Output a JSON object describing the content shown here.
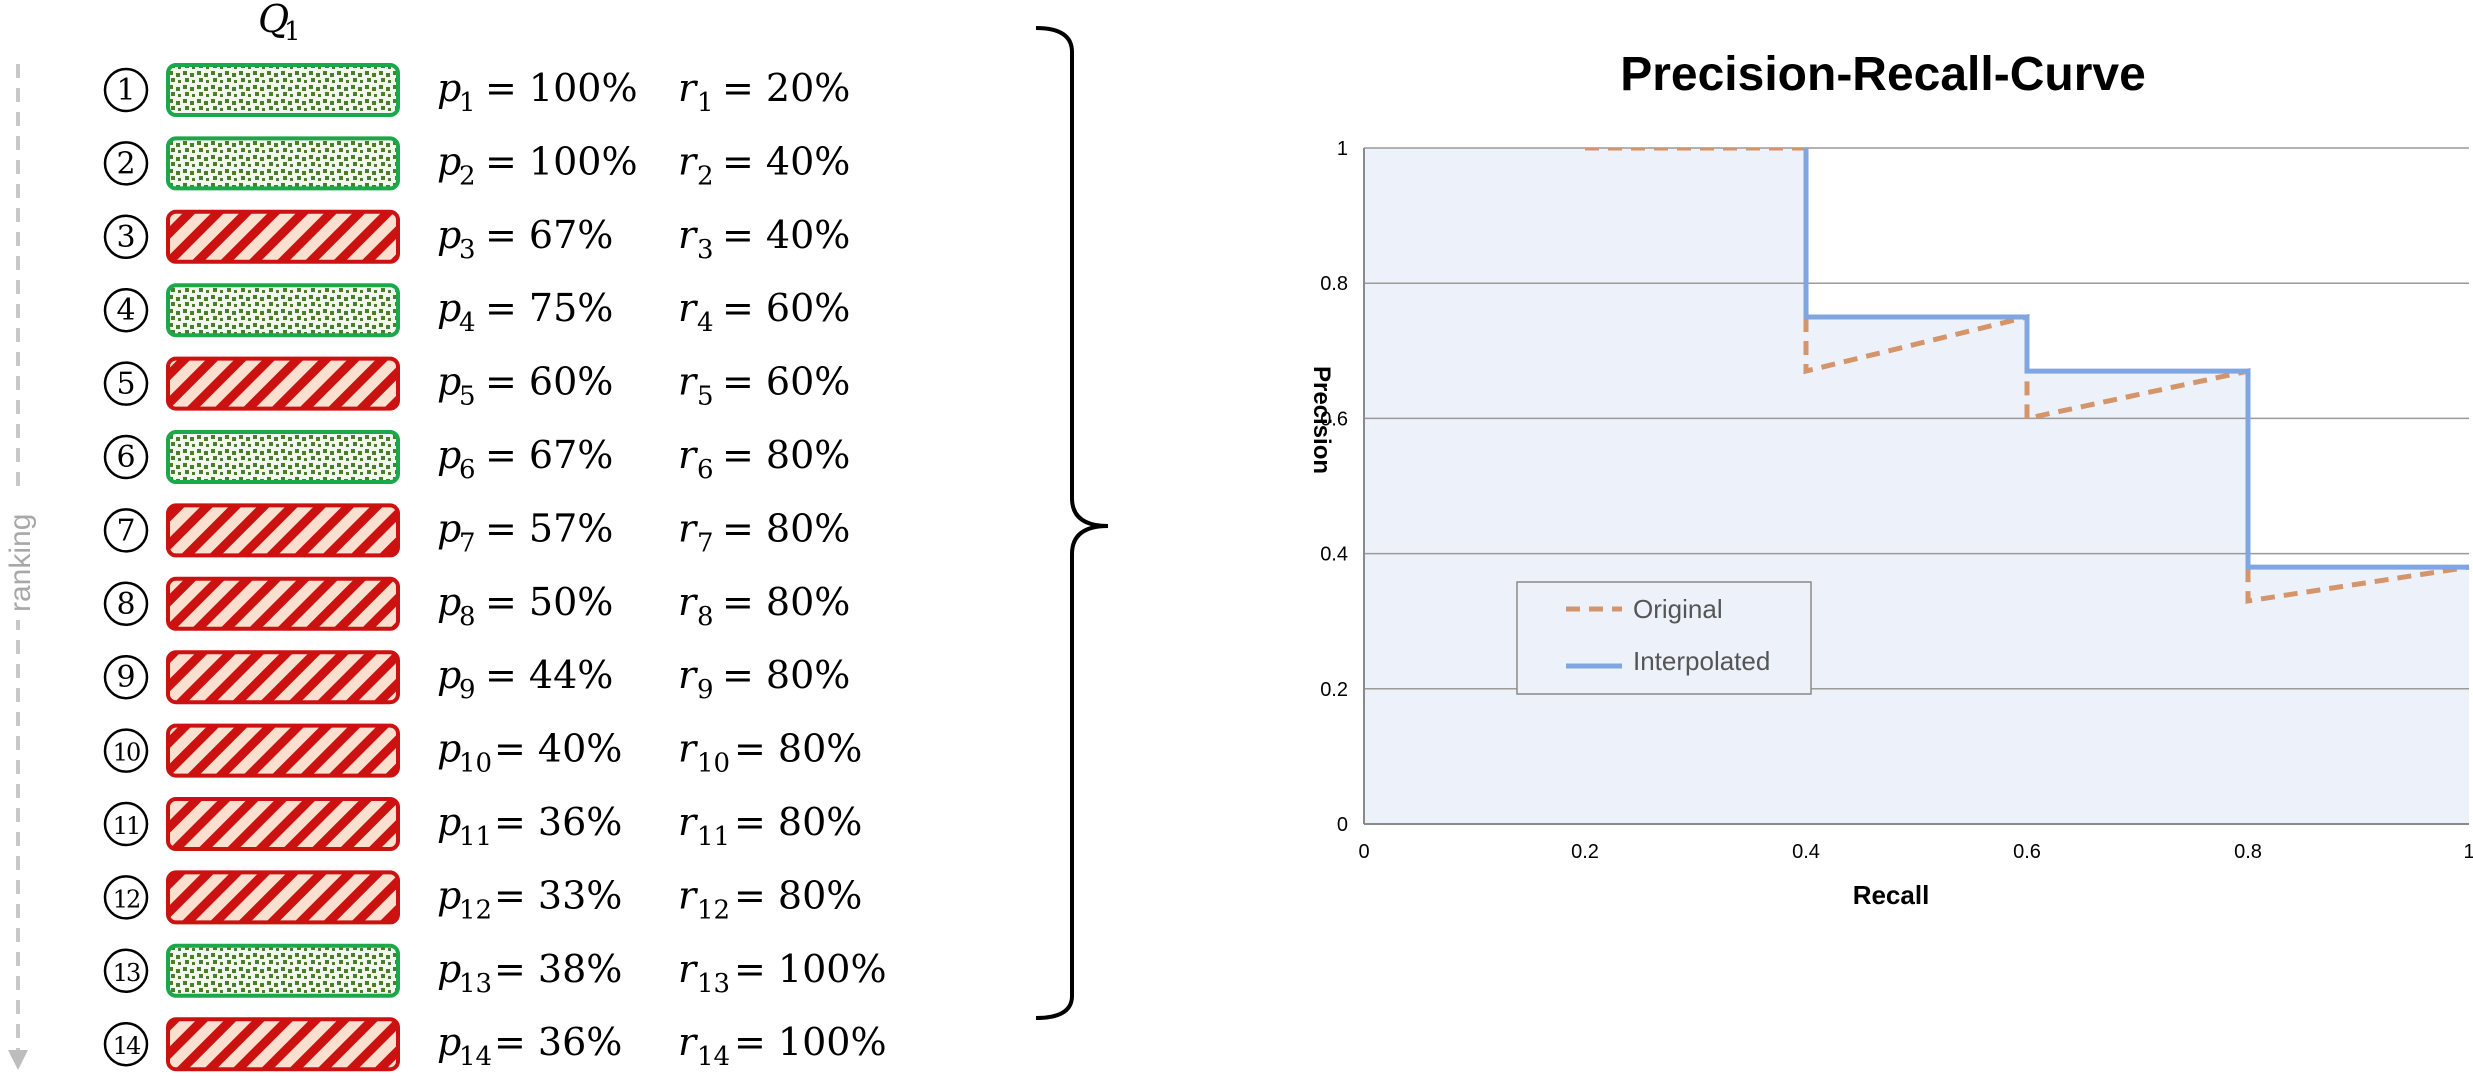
{
  "left_panel": {
    "query_label": "Q",
    "query_sub": "1",
    "ranking_label": "ranking",
    "colors": {
      "relevant": "#1aa84b",
      "irrelevant": "#cc1111"
    },
    "rows": [
      {
        "rank": "1",
        "relevant": true,
        "p_label": "p",
        "p_sub": "1",
        "p_value": "= 100%",
        "r_label": "r",
        "r_sub": "1",
        "r_value": "= 20%"
      },
      {
        "rank": "2",
        "relevant": true,
        "p_label": "p",
        "p_sub": "2",
        "p_value": "= 100%",
        "r_label": "r",
        "r_sub": "2",
        "r_value": "= 40%"
      },
      {
        "rank": "3",
        "relevant": false,
        "p_label": "p",
        "p_sub": "3",
        "p_value": "= 67%",
        "r_label": "r",
        "r_sub": "3",
        "r_value": "= 40%"
      },
      {
        "rank": "4",
        "relevant": true,
        "p_label": "p",
        "p_sub": "4",
        "p_value": "= 75%",
        "r_label": "r",
        "r_sub": "4",
        "r_value": "= 60%"
      },
      {
        "rank": "5",
        "relevant": false,
        "p_label": "p",
        "p_sub": "5",
        "p_value": "= 60%",
        "r_label": "r",
        "r_sub": "5",
        "r_value": "= 60%"
      },
      {
        "rank": "6",
        "relevant": true,
        "p_label": "p",
        "p_sub": "6",
        "p_value": "= 67%",
        "r_label": "r",
        "r_sub": "6",
        "r_value": "= 80%"
      },
      {
        "rank": "7",
        "relevant": false,
        "p_label": "p",
        "p_sub": "7",
        "p_value": "= 57%",
        "r_label": "r",
        "r_sub": "7",
        "r_value": "= 80%"
      },
      {
        "rank": "8",
        "relevant": false,
        "p_label": "p",
        "p_sub": "8",
        "p_value": "= 50%",
        "r_label": "r",
        "r_sub": "8",
        "r_value": "= 80%"
      },
      {
        "rank": "9",
        "relevant": false,
        "p_label": "p",
        "p_sub": "9",
        "p_value": "= 44%",
        "r_label": "r",
        "r_sub": "9",
        "r_value": "= 80%"
      },
      {
        "rank": "10",
        "relevant": false,
        "p_label": "p",
        "p_sub": "10",
        "p_value": "= 40%",
        "r_label": "r",
        "r_sub": "10",
        "r_value": "= 80%"
      },
      {
        "rank": "11",
        "relevant": false,
        "p_label": "p",
        "p_sub": "11",
        "p_value": "= 36%",
        "r_label": "r",
        "r_sub": "11",
        "r_value": "= 80%"
      },
      {
        "rank": "12",
        "relevant": false,
        "p_label": "p",
        "p_sub": "12",
        "p_value": "= 33%",
        "r_label": "r",
        "r_sub": "12",
        "r_value": "= 80%"
      },
      {
        "rank": "13",
        "relevant": true,
        "p_label": "p",
        "p_sub": "13",
        "p_value": "= 38%",
        "r_label": "r",
        "r_sub": "13",
        "r_value": "= 100%"
      },
      {
        "rank": "14",
        "relevant": false,
        "p_label": "p",
        "p_sub": "14",
        "p_value": "= 36%",
        "r_label": "r",
        "r_sub": "14",
        "r_value": "= 100%"
      }
    ]
  },
  "chart_data": {
    "type": "line",
    "title": "Precision-Recall-Curve",
    "xlabel": "Recall",
    "ylabel": "Precision",
    "xlim": [
      0,
      1
    ],
    "ylim": [
      0,
      1
    ],
    "xticks": [
      "0",
      "0.2",
      "0.4",
      "0.6",
      "0.8",
      "1"
    ],
    "yticks": [
      "0",
      "0.2",
      "0.4",
      "0.6",
      "0.8",
      "1"
    ],
    "grid": "horizontal",
    "legend_position": "lower-left",
    "colors": {
      "original": "#d4956b",
      "interpolated": "#7fa6e0",
      "fill": "#edf1fa"
    },
    "series": [
      {
        "name": "Original",
        "style": "dashed",
        "x": [
          0.2,
          0.4,
          0.4,
          0.6,
          0.6,
          0.8,
          0.8,
          1.0
        ],
        "y": [
          1.0,
          1.0,
          0.67,
          0.75,
          0.6,
          0.67,
          0.33,
          0.38
        ]
      },
      {
        "name": "Interpolated",
        "style": "solid",
        "x": [
          0.4,
          0.4,
          0.6,
          0.6,
          0.8,
          0.8,
          1.0
        ],
        "y": [
          1.0,
          0.75,
          0.75,
          0.67,
          0.67,
          0.38,
          0.38
        ]
      }
    ]
  }
}
